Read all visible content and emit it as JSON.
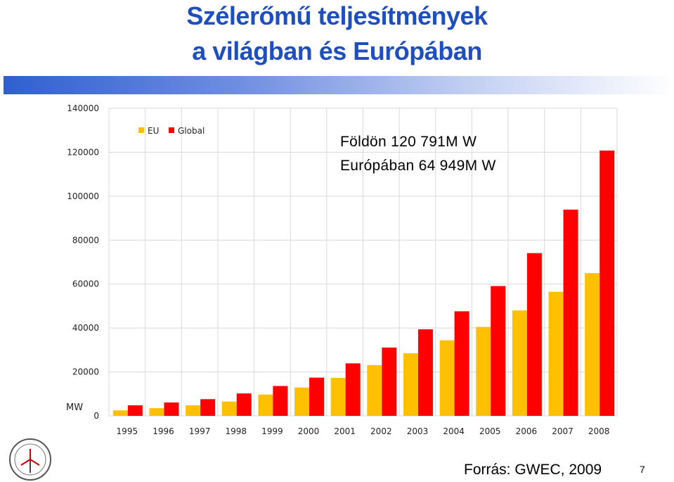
{
  "slide": {
    "title_line1": "Szélerőmű teljesítmények",
    "title_line2": "a világban és Európában",
    "annotation_world": "Földön 120 791M W",
    "annotation_europe": "Európában 64 949M W",
    "source": "Forrás: GWEC, 2009",
    "page_number": "7"
  },
  "chart_data": {
    "type": "bar",
    "unit_label": "MW",
    "categories": [
      "1995",
      "1996",
      "1997",
      "1998",
      "1999",
      "2000",
      "2001",
      "2002",
      "2003",
      "2004",
      "2005",
      "2006",
      "2007",
      "2008"
    ],
    "series": [
      {
        "name": "EU",
        "color": "#ffc000",
        "values": [
          2500,
          3500,
          4800,
          6500,
          9700,
          12900,
          17300,
          23100,
          28500,
          34400,
          40500,
          48000,
          56500,
          65000
        ]
      },
      {
        "name": "Global",
        "color": "#ff0000",
        "values": [
          4800,
          6100,
          7600,
          10200,
          13600,
          17400,
          23900,
          31100,
          39400,
          47600,
          59100,
          74100,
          93900,
          120800
        ]
      }
    ],
    "ylim": [
      0,
      140000
    ],
    "yticks": [
      "0",
      "20000",
      "40000",
      "60000",
      "80000",
      "100000",
      "120000",
      "140000"
    ],
    "grid": true,
    "legend_position": "top-left"
  }
}
